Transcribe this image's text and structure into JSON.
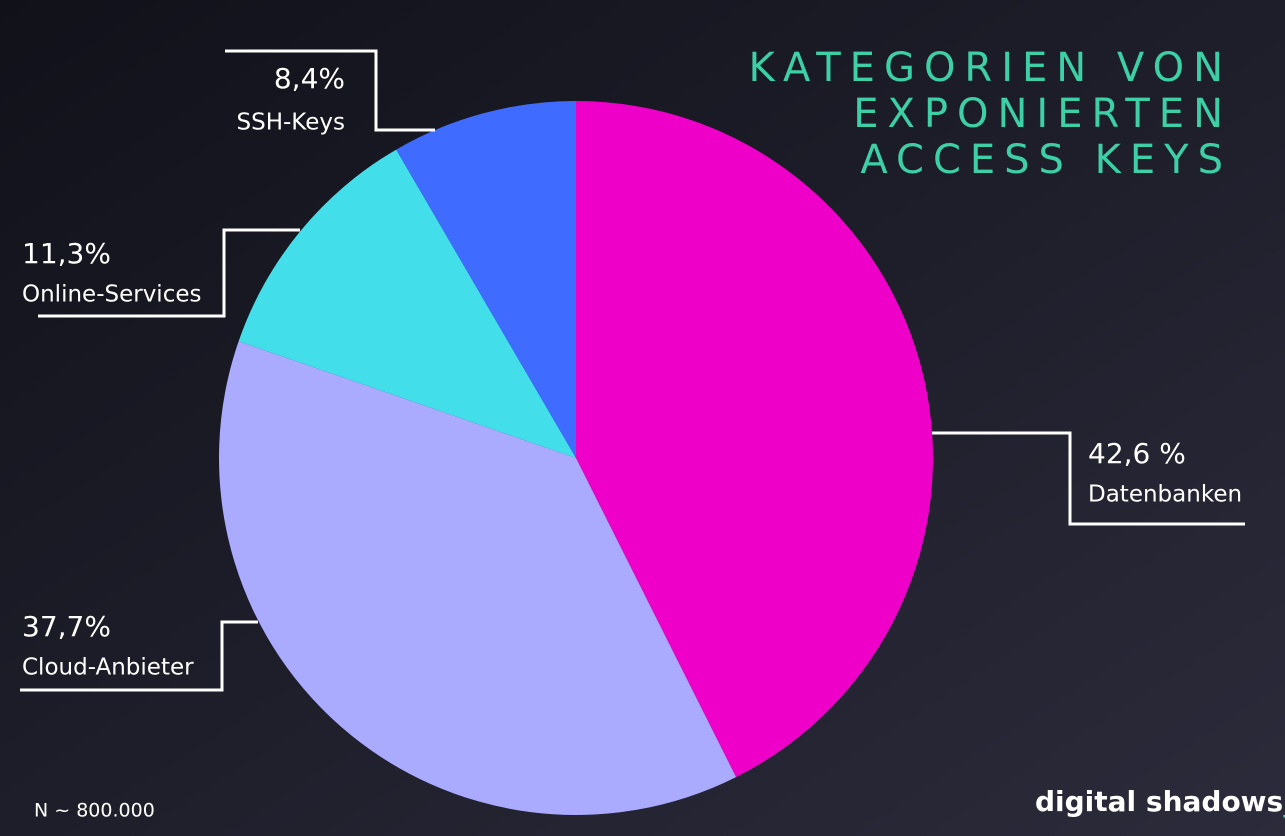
{
  "chart_data": {
    "type": "pie",
    "title": [
      "KATEGORIEN VON",
      "EXPONIERTEN",
      "ACCESS KEYS"
    ],
    "categories": [
      "Datenbanken",
      "Cloud-Anbieter",
      "Online-Services",
      "SSH-Keys"
    ],
    "values": [
      42.6,
      37.7,
      11.3,
      8.4
    ],
    "value_labels": [
      "42,6 %",
      "37,7%",
      "11,3%",
      "8,4%"
    ],
    "colors": [
      "#ee00c8",
      "#aaaaff",
      "#42dfea",
      "#3f6cff"
    ],
    "note": "N ~ 800.000",
    "logo": "digital shadows",
    "logo_mark": "_"
  }
}
